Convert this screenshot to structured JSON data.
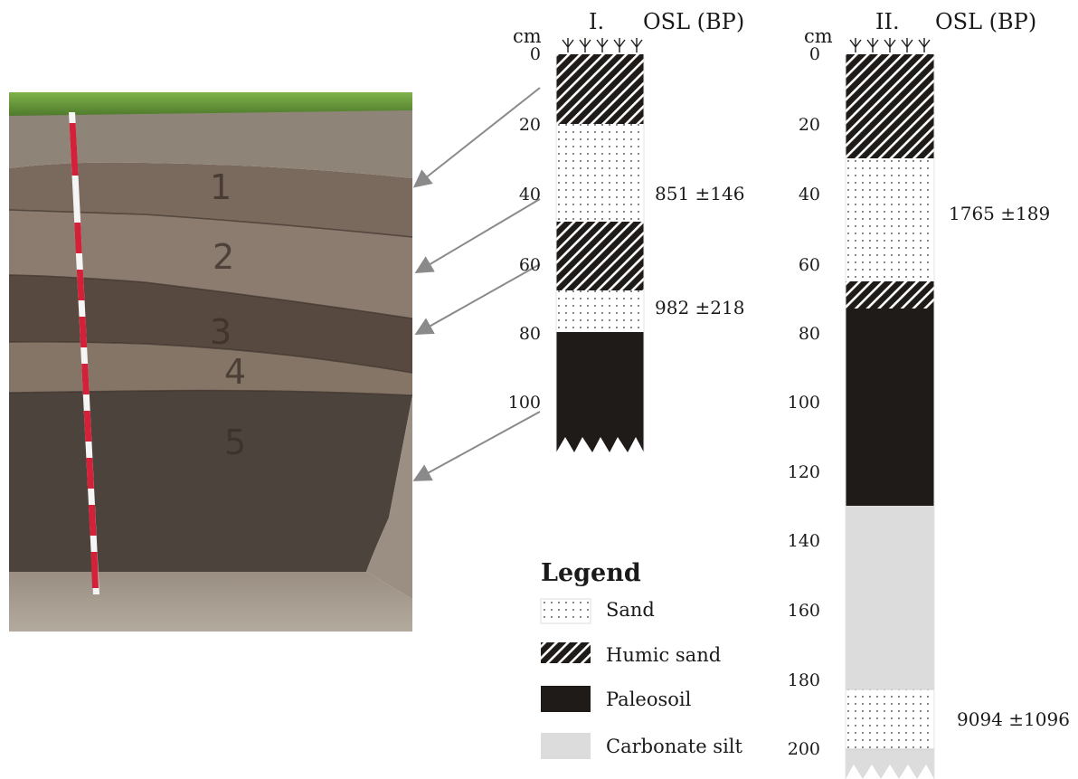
{
  "photo": {
    "horizon_numbers": [
      "1",
      "2",
      "3",
      "4",
      "5"
    ]
  },
  "profile1": {
    "roman": "I.",
    "unit": "cm",
    "osl_header": "OSL (BP)",
    "ticks": [
      "0",
      "20",
      "40",
      "60",
      "80",
      "100"
    ],
    "osl_dates": [
      "851 ±146",
      "982 ±218"
    ]
  },
  "profile2": {
    "roman": "II.",
    "unit": "cm",
    "osl_header": "OSL (BP)",
    "ticks": [
      "0",
      "20",
      "40",
      "60",
      "80",
      "100",
      "120",
      "140",
      "160",
      "180",
      "200"
    ],
    "osl_dates": [
      "1765 ±189",
      "9094 ±1096"
    ]
  },
  "legend": {
    "title": "Legend",
    "items": [
      {
        "label": "Sand",
        "pattern": "sand"
      },
      {
        "label": "Humic sand",
        "pattern": "humic"
      },
      {
        "label": "Paleosoil",
        "pattern": "paleo"
      },
      {
        "label": "Carbonate silt",
        "pattern": "carbonate"
      }
    ]
  },
  "colors": {
    "paleosoil": "#1f1b18",
    "carbonate_silt": "#dcdcdc",
    "arrow": "#8a8a8a",
    "scale_red": "#d4213a"
  }
}
